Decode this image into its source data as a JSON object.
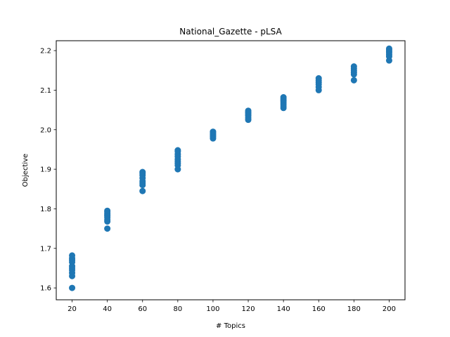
{
  "chart_data": {
    "type": "scatter",
    "title": "National_Gazette - pLSA",
    "xlabel": "# Topics",
    "ylabel": "Objective",
    "xlim": [
      11,
      209
    ],
    "ylim": [
      1.57,
      2.225
    ],
    "xticks": [
      20,
      40,
      60,
      80,
      100,
      120,
      140,
      160,
      180,
      200
    ],
    "yticks": [
      1.6,
      1.7,
      1.8,
      1.9,
      2.0,
      2.1,
      2.2
    ],
    "ytick_labels": [
      "1.6",
      "1.7",
      "1.8",
      "1.9",
      "2.0",
      "2.1",
      "2.2"
    ],
    "grid": false,
    "marker_color": "#1f77b4",
    "series": [
      {
        "x": [
          20,
          20,
          20,
          20,
          20,
          20,
          20,
          20,
          20,
          20,
          40,
          40,
          40,
          40,
          40,
          40,
          40,
          40,
          40,
          60,
          60,
          60,
          60,
          60,
          60,
          60,
          60,
          80,
          80,
          80,
          80,
          80,
          80,
          80,
          80,
          80,
          100,
          100,
          100,
          100,
          100,
          100,
          120,
          120,
          120,
          120,
          120,
          120,
          120,
          140,
          140,
          140,
          140,
          140,
          140,
          140,
          160,
          160,
          160,
          160,
          160,
          160,
          180,
          180,
          180,
          180,
          180,
          180,
          200,
          200,
          200,
          200,
          200,
          200,
          200
        ],
        "y": [
          1.6,
          1.63,
          1.638,
          1.645,
          1.65,
          1.655,
          1.665,
          1.67,
          1.675,
          1.682,
          1.75,
          1.768,
          1.772,
          1.778,
          1.782,
          1.785,
          1.788,
          1.792,
          1.795,
          1.845,
          1.86,
          1.865,
          1.87,
          1.878,
          1.885,
          1.89,
          1.893,
          1.9,
          1.91,
          1.915,
          1.92,
          1.925,
          1.932,
          1.938,
          1.945,
          1.948,
          1.978,
          1.982,
          1.985,
          1.988,
          1.992,
          1.995,
          2.025,
          2.03,
          2.035,
          2.038,
          2.042,
          2.045,
          2.048,
          2.055,
          2.06,
          2.065,
          2.07,
          2.074,
          2.078,
          2.082,
          2.1,
          2.108,
          2.115,
          2.12,
          2.125,
          2.13,
          2.125,
          2.14,
          2.145,
          2.15,
          2.155,
          2.16,
          2.175,
          2.185,
          2.19,
          2.195,
          2.198,
          2.202,
          2.205
        ]
      }
    ]
  }
}
